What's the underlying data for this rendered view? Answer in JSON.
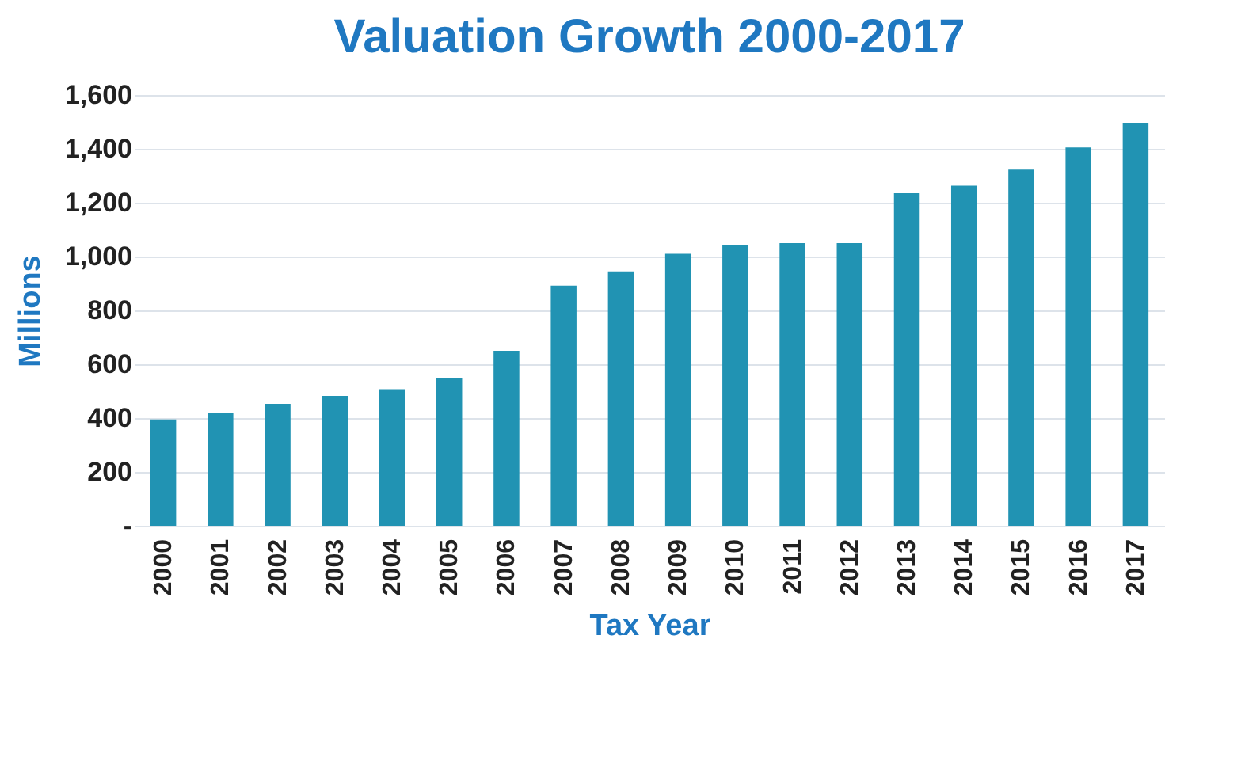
{
  "chart_data": {
    "type": "bar",
    "title": "Valuation Growth  2000-2017",
    "xlabel": "Tax Year",
    "ylabel": "Millions",
    "categories": [
      "2000",
      "2001",
      "2002",
      "2003",
      "2004",
      "2005",
      "2006",
      "2007",
      "2008",
      "2009",
      "2010",
      "2011",
      "2012",
      "2013",
      "2014",
      "2015",
      "2016",
      "2017"
    ],
    "values": [
      395,
      420,
      453,
      482,
      507,
      550,
      650,
      892,
      945,
      1010,
      1043,
      1050,
      1050,
      1235,
      1263,
      1323,
      1405,
      1497
    ],
    "color": "#2193b3",
    "ylim": [
      0,
      1600
    ],
    "yticks": [
      {
        "value": 0,
        "label": "-"
      },
      {
        "value": 200,
        "label": "200"
      },
      {
        "value": 400,
        "label": "400"
      },
      {
        "value": 600,
        "label": "600"
      },
      {
        "value": 800,
        "label": "800"
      },
      {
        "value": 1000,
        "label": "1,000"
      },
      {
        "value": 1200,
        "label": "1,200"
      },
      {
        "value": 1400,
        "label": "1,400"
      },
      {
        "value": 1600,
        "label": "1,600"
      }
    ],
    "grid": "y"
  }
}
